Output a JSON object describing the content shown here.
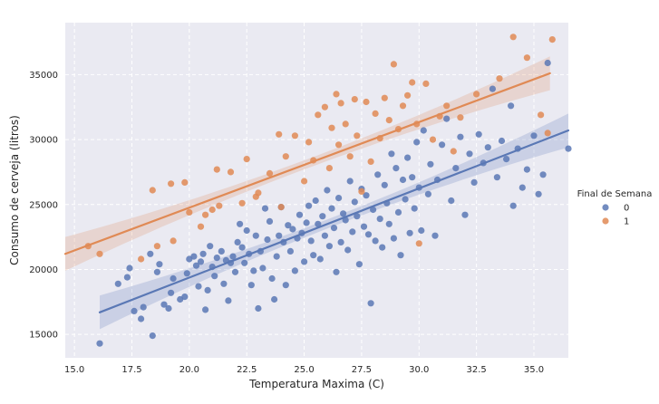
{
  "chart_data": {
    "type": "scatter",
    "title": "",
    "xlabel": "Temperatura Maxima (C)",
    "ylabel": "Consumo de cerveja (litros)",
    "xlim": [
      14.6,
      36.5
    ],
    "ylim": [
      13200,
      39000
    ],
    "xticks": [
      15.0,
      17.5,
      20.0,
      22.5,
      25.0,
      27.5,
      30.0,
      32.5,
      35.0
    ],
    "xtick_labels": [
      "15.0",
      "17.5",
      "20.0",
      "22.5",
      "25.0",
      "27.5",
      "30.0",
      "32.5",
      "35.0"
    ],
    "yticks": [
      15000,
      20000,
      25000,
      30000,
      35000
    ],
    "ytick_labels": [
      "15000",
      "20000",
      "25000",
      "30000",
      "35000"
    ],
    "grid": true,
    "legend": {
      "title": "Final de Semana",
      "placement": "right-outside",
      "entries": [
        {
          "label": "0",
          "color": "#5a78b5"
        },
        {
          "label": "1",
          "color": "#e08a55"
        }
      ]
    },
    "series": [
      {
        "name": "0",
        "color": "#5a78b5",
        "regression": {
          "x": [
            16.1,
            36.5
          ],
          "y": [
            16700,
            30700
          ]
        },
        "points": [
          [
            16.1,
            14300
          ],
          [
            16.9,
            18900
          ],
          [
            17.3,
            19400
          ],
          [
            17.4,
            20100
          ],
          [
            17.6,
            16800
          ],
          [
            17.9,
            16200
          ],
          [
            18.0,
            17100
          ],
          [
            18.3,
            21200
          ],
          [
            18.4,
            14900
          ],
          [
            18.6,
            19800
          ],
          [
            18.7,
            20400
          ],
          [
            18.9,
            17300
          ],
          [
            19.1,
            17000
          ],
          [
            19.2,
            18200
          ],
          [
            19.3,
            19300
          ],
          [
            19.6,
            17700
          ],
          [
            19.8,
            17900
          ],
          [
            19.9,
            19700
          ],
          [
            20.0,
            20800
          ],
          [
            20.2,
            21000
          ],
          [
            20.3,
            20300
          ],
          [
            20.4,
            18700
          ],
          [
            20.5,
            20600
          ],
          [
            20.6,
            21200
          ],
          [
            20.7,
            16900
          ],
          [
            20.8,
            18400
          ],
          [
            20.9,
            21800
          ],
          [
            21.0,
            20200
          ],
          [
            21.1,
            19500
          ],
          [
            21.2,
            20900
          ],
          [
            21.4,
            21400
          ],
          [
            21.5,
            18900
          ],
          [
            21.6,
            20700
          ],
          [
            21.7,
            17600
          ],
          [
            21.8,
            20500
          ],
          [
            21.9,
            21000
          ],
          [
            22.0,
            19800
          ],
          [
            22.1,
            22100
          ],
          [
            22.2,
            23500
          ],
          [
            22.3,
            21700
          ],
          [
            22.4,
            20500
          ],
          [
            22.5,
            23000
          ],
          [
            22.6,
            21200
          ],
          [
            22.7,
            18800
          ],
          [
            22.8,
            19900
          ],
          [
            22.9,
            22600
          ],
          [
            23.0,
            17000
          ],
          [
            23.1,
            21400
          ],
          [
            23.2,
            20100
          ],
          [
            23.3,
            24700
          ],
          [
            23.4,
            22300
          ],
          [
            23.5,
            23700
          ],
          [
            23.6,
            19300
          ],
          [
            23.7,
            17700
          ],
          [
            23.8,
            21000
          ],
          [
            23.9,
            22600
          ],
          [
            24.0,
            24800
          ],
          [
            24.1,
            22100
          ],
          [
            24.2,
            18800
          ],
          [
            24.3,
            23400
          ],
          [
            24.4,
            21400
          ],
          [
            24.5,
            23100
          ],
          [
            24.6,
            19900
          ],
          [
            24.7,
            22400
          ],
          [
            24.8,
            24200
          ],
          [
            24.9,
            22800
          ],
          [
            25.0,
            20600
          ],
          [
            25.1,
            23600
          ],
          [
            25.2,
            24900
          ],
          [
            25.3,
            22200
          ],
          [
            25.4,
            21100
          ],
          [
            25.5,
            25300
          ],
          [
            25.6,
            23500
          ],
          [
            25.7,
            20800
          ],
          [
            25.8,
            24100
          ],
          [
            25.9,
            22600
          ],
          [
            26.0,
            26100
          ],
          [
            26.1,
            21800
          ],
          [
            26.2,
            24700
          ],
          [
            26.3,
            23200
          ],
          [
            26.4,
            19800
          ],
          [
            26.5,
            25500
          ],
          [
            26.6,
            22100
          ],
          [
            26.7,
            24300
          ],
          [
            26.8,
            23800
          ],
          [
            26.9,
            21500
          ],
          [
            27.0,
            26800
          ],
          [
            27.1,
            22900
          ],
          [
            27.2,
            25200
          ],
          [
            27.3,
            24100
          ],
          [
            27.4,
            20400
          ],
          [
            27.5,
            26200
          ],
          [
            27.6,
            23300
          ],
          [
            27.7,
            25700
          ],
          [
            27.8,
            22700
          ],
          [
            27.9,
            17400
          ],
          [
            28.0,
            24600
          ],
          [
            28.1,
            22200
          ],
          [
            28.2,
            27300
          ],
          [
            28.3,
            23900
          ],
          [
            28.4,
            21700
          ],
          [
            28.5,
            26500
          ],
          [
            28.6,
            25100
          ],
          [
            28.7,
            23500
          ],
          [
            28.8,
            28900
          ],
          [
            28.9,
            22400
          ],
          [
            29.0,
            27800
          ],
          [
            29.1,
            24400
          ],
          [
            29.2,
            21100
          ],
          [
            29.3,
            26900
          ],
          [
            29.4,
            25400
          ],
          [
            29.5,
            28600
          ],
          [
            29.6,
            22800
          ],
          [
            29.7,
            27100
          ],
          [
            29.8,
            24700
          ],
          [
            29.9,
            29800
          ],
          [
            30.0,
            26300
          ],
          [
            30.1,
            23000
          ],
          [
            30.2,
            30700
          ],
          [
            30.4,
            25800
          ],
          [
            30.5,
            28100
          ],
          [
            30.7,
            22600
          ],
          [
            30.8,
            26900
          ],
          [
            31.0,
            29600
          ],
          [
            31.2,
            31600
          ],
          [
            31.4,
            25300
          ],
          [
            31.6,
            27800
          ],
          [
            31.8,
            30200
          ],
          [
            32.0,
            24200
          ],
          [
            32.2,
            28900
          ],
          [
            32.4,
            26700
          ],
          [
            32.6,
            30400
          ],
          [
            32.8,
            28200
          ],
          [
            33.0,
            29400
          ],
          [
            33.2,
            33900
          ],
          [
            33.4,
            27100
          ],
          [
            33.6,
            29900
          ],
          [
            33.8,
            28500
          ],
          [
            34.0,
            32600
          ],
          [
            34.1,
            24900
          ],
          [
            34.3,
            29300
          ],
          [
            34.5,
            26300
          ],
          [
            34.7,
            27700
          ],
          [
            35.0,
            30300
          ],
          [
            35.2,
            25800
          ],
          [
            35.4,
            27300
          ],
          [
            35.6,
            35900
          ],
          [
            36.5,
            29300
          ]
        ]
      },
      {
        "name": "1",
        "color": "#e08a55",
        "regression": {
          "x": [
            14.6,
            35.7
          ],
          "y": [
            21200,
            35100
          ]
        },
        "points": [
          [
            15.6,
            21800
          ],
          [
            16.1,
            21200
          ],
          [
            17.9,
            20800
          ],
          [
            18.4,
            26100
          ],
          [
            18.6,
            21800
          ],
          [
            19.2,
            26600
          ],
          [
            19.3,
            22200
          ],
          [
            19.8,
            26700
          ],
          [
            20.0,
            24400
          ],
          [
            20.5,
            23300
          ],
          [
            20.7,
            24200
          ],
          [
            21.0,
            24600
          ],
          [
            21.2,
            27700
          ],
          [
            21.3,
            24900
          ],
          [
            21.8,
            27500
          ],
          [
            22.3,
            25100
          ],
          [
            22.5,
            28500
          ],
          [
            22.9,
            25600
          ],
          [
            23.0,
            25900
          ],
          [
            23.5,
            27400
          ],
          [
            23.9,
            30400
          ],
          [
            24.0,
            24800
          ],
          [
            24.2,
            28700
          ],
          [
            24.6,
            30300
          ],
          [
            25.0,
            26800
          ],
          [
            25.2,
            29800
          ],
          [
            25.4,
            28400
          ],
          [
            25.6,
            31900
          ],
          [
            25.9,
            32500
          ],
          [
            26.1,
            27800
          ],
          [
            26.2,
            30900
          ],
          [
            26.4,
            33500
          ],
          [
            26.5,
            29600
          ],
          [
            26.6,
            32800
          ],
          [
            26.8,
            31200
          ],
          [
            27.0,
            28700
          ],
          [
            27.2,
            33100
          ],
          [
            27.3,
            30300
          ],
          [
            27.5,
            26000
          ],
          [
            27.7,
            32900
          ],
          [
            27.9,
            28300
          ],
          [
            28.1,
            32000
          ],
          [
            28.3,
            30100
          ],
          [
            28.5,
            33200
          ],
          [
            28.7,
            31500
          ],
          [
            28.9,
            35800
          ],
          [
            29.1,
            30800
          ],
          [
            29.3,
            32600
          ],
          [
            29.5,
            33400
          ],
          [
            29.7,
            34400
          ],
          [
            29.9,
            31200
          ],
          [
            30.0,
            22000
          ],
          [
            30.3,
            34300
          ],
          [
            30.6,
            30000
          ],
          [
            30.9,
            31800
          ],
          [
            31.2,
            32600
          ],
          [
            31.5,
            29100
          ],
          [
            31.8,
            31700
          ],
          [
            32.5,
            33500
          ],
          [
            33.5,
            34700
          ],
          [
            34.1,
            37900
          ],
          [
            34.7,
            36300
          ],
          [
            35.3,
            31900
          ],
          [
            35.6,
            30500
          ],
          [
            35.8,
            37700
          ]
        ]
      }
    ]
  }
}
